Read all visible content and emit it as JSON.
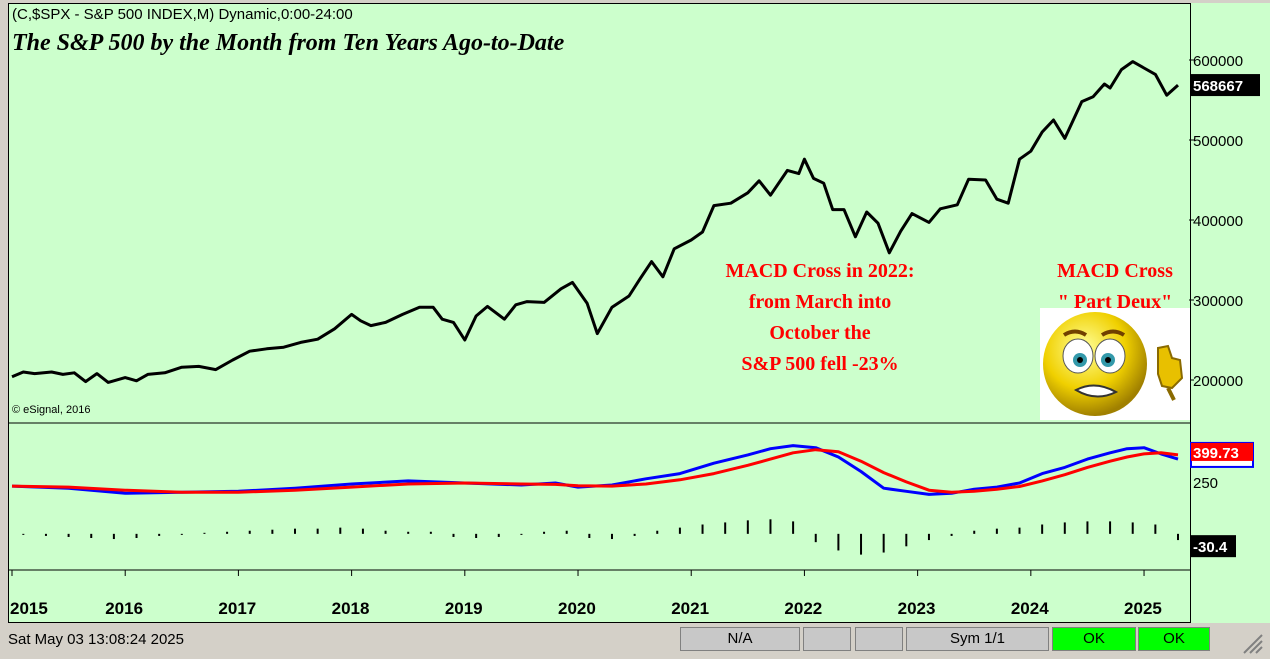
{
  "header": {
    "symbol_line": "(C,$SPX - S&P 500 INDEX,M) Dynamic,0:00-24:00",
    "title": "The S&P 500 by the Month from Ten Years Ago-to-Date",
    "copyright": "© eSignal, 2016"
  },
  "annotations": {
    "macd_2022_lines": [
      "MACD Cross in 2022:",
      "from March into",
      "October the",
      "S&P 500 fell -23%"
    ],
    "part_deux_lines": [
      "MACD Cross",
      "\" Part Deux\""
    ]
  },
  "colors": {
    "background": "#ccffcc",
    "price_line": "#000000",
    "macd_line": "#0000ff",
    "signal_line": "#ff0000",
    "annotation": "#ff0000",
    "ok": "#00ff00"
  },
  "status_bar": {
    "datetime": "Sat May 03 13:08:24 2025",
    "na": "N/A",
    "sym": "Sym 1/1",
    "ok1": "OK",
    "ok2": "OK"
  },
  "chart_data": [
    {
      "type": "line",
      "title": "The S&P 500 by the Month from Ten Years Ago-to-Date",
      "ylim": [
        150000,
        650000
      ],
      "y_ticks": [
        200000,
        300000,
        400000,
        500000,
        600000
      ],
      "y_tick_labels": [
        "200000",
        "300000",
        "400000",
        "500000",
        "600000"
      ],
      "last_value_label": "568667",
      "x_ticks": [
        2015,
        2016,
        2017,
        2018,
        2019,
        2020,
        2021,
        2022,
        2023,
        2024,
        2025
      ],
      "x_tick_labels": [
        "2015",
        "2016",
        "2017",
        "2018",
        "2019",
        "2020",
        "2021",
        "2022",
        "2023",
        "2024",
        "2025"
      ],
      "series": [
        {
          "name": "S&P 500 (monthly close)",
          "x": [
            2015.0,
            2015.1,
            2015.2,
            2015.35,
            2015.45,
            2015.55,
            2015.65,
            2015.75,
            2015.85,
            2016.0,
            2016.1,
            2016.2,
            2016.35,
            2016.5,
            2016.65,
            2016.8,
            2016.95,
            2017.1,
            2017.25,
            2017.4,
            2017.55,
            2017.7,
            2017.85,
            2018.0,
            2018.08,
            2018.17,
            2018.3,
            2018.45,
            2018.6,
            2018.72,
            2018.8,
            2018.9,
            2019.0,
            2019.1,
            2019.2,
            2019.35,
            2019.45,
            2019.55,
            2019.7,
            2019.85,
            2019.95,
            2020.08,
            2020.17,
            2020.3,
            2020.45,
            2020.55,
            2020.65,
            2020.75,
            2020.85,
            2021.0,
            2021.1,
            2021.2,
            2021.35,
            2021.5,
            2021.6,
            2021.7,
            2021.85,
            2021.95,
            2022.0,
            2022.08,
            2022.17,
            2022.25,
            2022.35,
            2022.45,
            2022.55,
            2022.65,
            2022.75,
            2022.85,
            2022.95,
            2023.1,
            2023.2,
            2023.35,
            2023.45,
            2023.6,
            2023.7,
            2023.8,
            2023.9,
            2024.0,
            2024.1,
            2024.2,
            2024.3,
            2024.45,
            2024.55,
            2024.65,
            2024.7,
            2024.8,
            2024.9,
            2025.0,
            2025.1,
            2025.2,
            2025.3
          ],
          "values": [
            204000,
            210000,
            208000,
            210000,
            207000,
            209000,
            198000,
            208000,
            197000,
            203000,
            199000,
            207000,
            209000,
            216000,
            217000,
            213000,
            225000,
            236000,
            239000,
            241000,
            247000,
            251000,
            264000,
            282000,
            274000,
            268000,
            272000,
            282000,
            291000,
            291000,
            276000,
            272000,
            250000,
            280000,
            292000,
            276000,
            294000,
            298000,
            297000,
            314000,
            322000,
            296000,
            258000,
            291000,
            305000,
            327000,
            348000,
            329000,
            364000,
            375000,
            385000,
            418000,
            421000,
            434000,
            449000,
            431000,
            462000,
            458000,
            476000,
            452000,
            446000,
            413000,
            413000,
            379000,
            410000,
            396000,
            359000,
            386000,
            408000,
            397000,
            414000,
            419000,
            451000,
            450000,
            426000,
            421000,
            476000,
            486000,
            510000,
            525000,
            502000,
            548000,
            554000,
            570000,
            565000,
            588000,
            598000,
            590000,
            582000,
            556000,
            568667
          ]
        },
        {
          "name": "last",
          "last_value": 568667
        }
      ]
    },
    {
      "type": "line",
      "title": "MACD",
      "ylim": [
        -150,
        500
      ],
      "y_tick_labels": [
        "250"
      ],
      "y_ticks": [
        250
      ],
      "value_labels": [
        "399.73",
        "-30.4"
      ],
      "x_ticks": [
        2015,
        2016,
        2017,
        2018,
        2019,
        2020,
        2021,
        2022,
        2023,
        2024,
        2025
      ],
      "series": [
        {
          "name": "MACD",
          "x": [
            2015,
            2015.5,
            2016,
            2016.5,
            2017,
            2017.5,
            2018,
            2018.5,
            2019,
            2019.5,
            2019.8,
            2020.0,
            2020.3,
            2020.6,
            2020.9,
            2021.2,
            2021.5,
            2021.7,
            2021.9,
            2022.1,
            2022.3,
            2022.5,
            2022.7,
            2022.9,
            2023.1,
            2023.3,
            2023.5,
            2023.7,
            2023.9,
            2024.1,
            2024.3,
            2024.5,
            2024.7,
            2024.85,
            2025.0,
            2025.15,
            2025.3
          ],
          "values": [
            230,
            220,
            195,
            200,
            205,
            220,
            240,
            255,
            245,
            235,
            245,
            225,
            235,
            265,
            290,
            340,
            380,
            410,
            425,
            415,
            370,
            300,
            220,
            205,
            190,
            195,
            215,
            225,
            245,
            290,
            320,
            360,
            390,
            410,
            415,
            385,
            360
          ]
        },
        {
          "name": "Signal",
          "x": [
            2015,
            2015.5,
            2016,
            2016.5,
            2017,
            2017.5,
            2018,
            2018.5,
            2019,
            2019.5,
            2019.8,
            2020.0,
            2020.3,
            2020.6,
            2020.9,
            2021.2,
            2021.5,
            2021.7,
            2021.9,
            2022.1,
            2022.3,
            2022.5,
            2022.7,
            2022.9,
            2023.1,
            2023.3,
            2023.5,
            2023.7,
            2023.9,
            2024.1,
            2024.3,
            2024.5,
            2024.7,
            2024.85,
            2025.0,
            2025.15,
            2025.3
          ],
          "values": [
            230,
            225,
            210,
            200,
            200,
            210,
            225,
            240,
            245,
            240,
            238,
            232,
            230,
            240,
            260,
            290,
            330,
            360,
            390,
            405,
            395,
            350,
            295,
            250,
            210,
            200,
            205,
            215,
            228,
            255,
            285,
            320,
            350,
            370,
            385,
            390,
            380
          ]
        },
        {
          "name": "Histogram",
          "x": [
            2015.1,
            2015.3,
            2015.5,
            2015.7,
            2015.9,
            2016.1,
            2016.3,
            2016.5,
            2016.7,
            2016.9,
            2017.1,
            2017.3,
            2017.5,
            2017.7,
            2017.9,
            2018.1,
            2018.3,
            2018.5,
            2018.7,
            2018.9,
            2019.1,
            2019.3,
            2019.5,
            2019.7,
            2019.9,
            2020.1,
            2020.3,
            2020.5,
            2020.7,
            2020.9,
            2021.1,
            2021.3,
            2021.5,
            2021.7,
            2021.9,
            2022.1,
            2022.3,
            2022.5,
            2022.7,
            2022.9,
            2023.1,
            2023.3,
            2023.5,
            2023.7,
            2023.9,
            2024.1,
            2024.3,
            2024.5,
            2024.7,
            2024.9,
            2025.1,
            2025.3
          ],
          "values": [
            -5,
            -10,
            -15,
            -20,
            -25,
            -20,
            -10,
            -5,
            5,
            10,
            15,
            20,
            25,
            25,
            30,
            25,
            15,
            10,
            10,
            -15,
            -20,
            -15,
            -5,
            10,
            15,
            -20,
            -25,
            -10,
            15,
            30,
            45,
            55,
            65,
            70,
            60,
            -40,
            -80,
            -100,
            -90,
            -60,
            -30,
            -10,
            15,
            25,
            30,
            45,
            55,
            60,
            60,
            55,
            45,
            -30
          ]
        }
      ]
    }
  ]
}
